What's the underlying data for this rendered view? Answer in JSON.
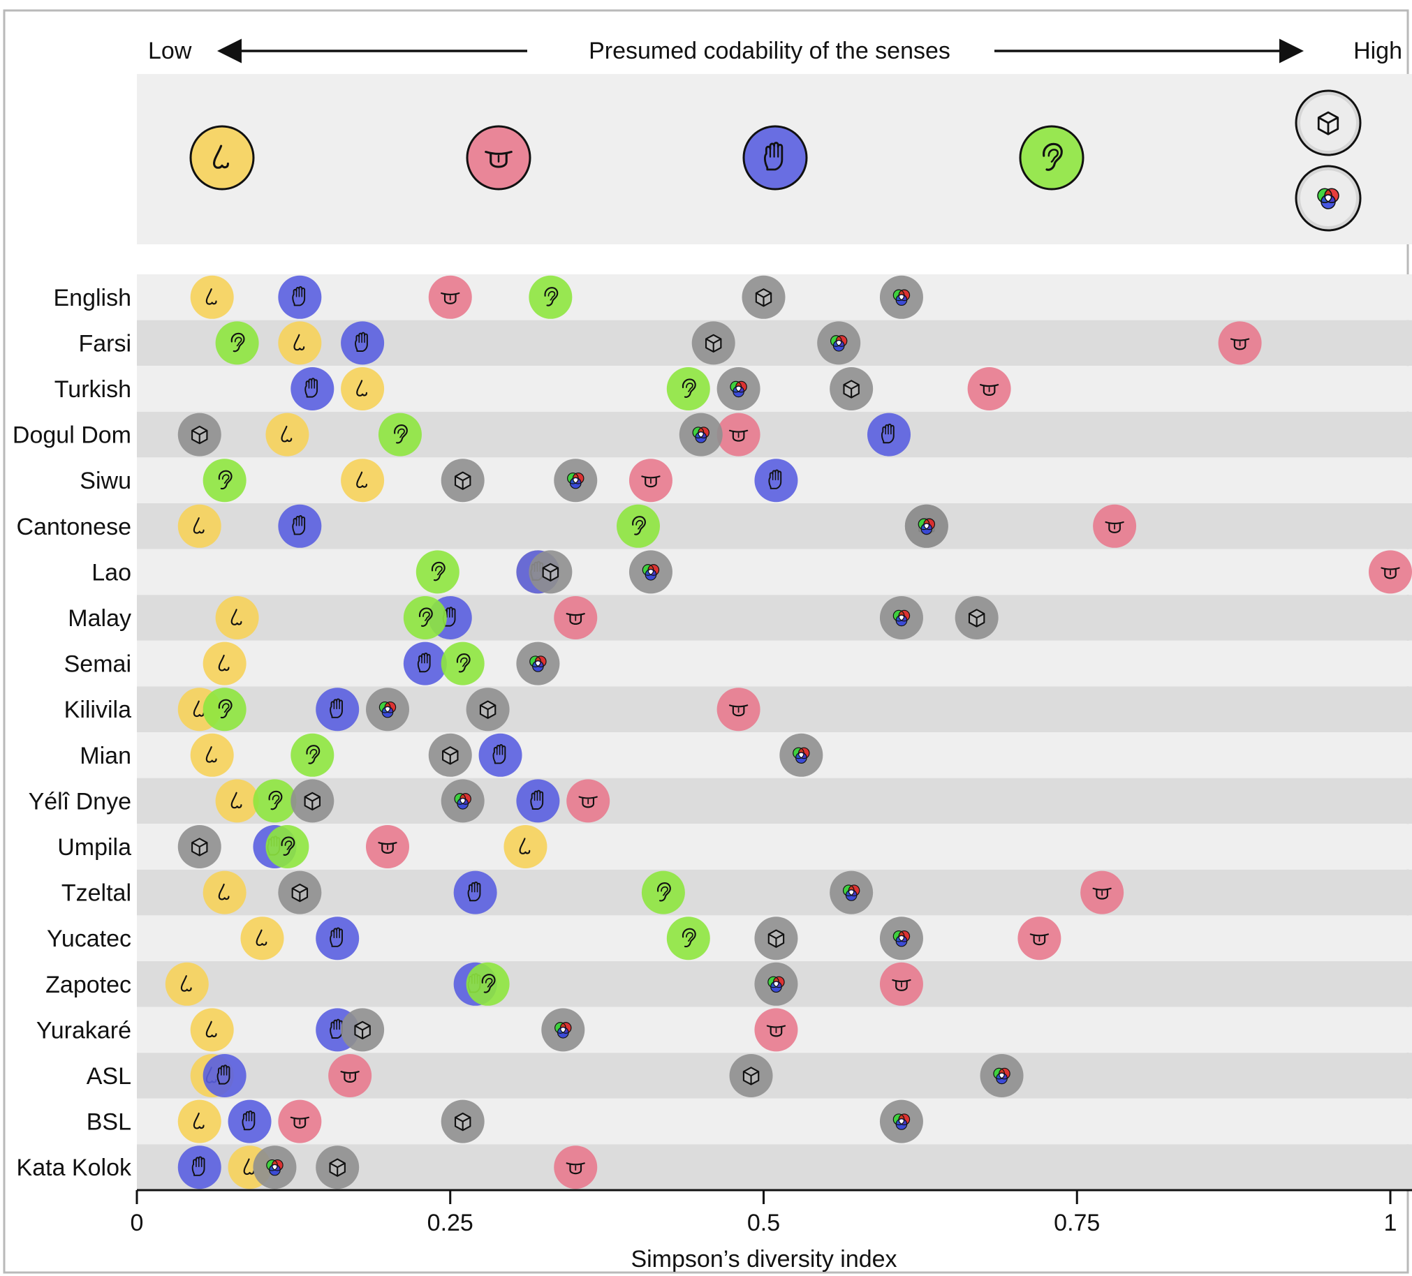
{
  "header": {
    "low_label": "Low",
    "high_label": "High",
    "title": "Presumed codability of the senses"
  },
  "legend": [
    {
      "sense": "smell",
      "icon": "nose-icon",
      "color": "#F6D25A"
    },
    {
      "sense": "taste",
      "icon": "tongue-icon",
      "color": "#E87A8E"
    },
    {
      "sense": "touch",
      "icon": "hand-icon",
      "color": "#5A5FE0"
    },
    {
      "sense": "sound",
      "icon": "ear-icon",
      "color": "#8EE53F"
    },
    {
      "sense": "shape",
      "icon": "cube-icon",
      "color": "#9A9A9A"
    },
    {
      "sense": "color",
      "icon": "color-wheel-icon",
      "color": "#9A9A9A"
    }
  ],
  "chart_data": {
    "type": "scatter",
    "xlabel": "Simpson’s diversity index",
    "xlim": [
      0,
      1
    ],
    "xticks": [
      0,
      0.25,
      0.5,
      0.75,
      1
    ],
    "xtick_labels": [
      "0",
      "0.25",
      "0.5",
      "0.75",
      "1"
    ],
    "series_order": [
      "smell",
      "taste",
      "touch",
      "sound",
      "shape",
      "color"
    ],
    "languages": [
      {
        "name": "English",
        "smell": 0.06,
        "touch": 0.13,
        "taste": 0.25,
        "sound": 0.33,
        "shape": 0.5,
        "color": 0.61
      },
      {
        "name": "Farsi",
        "sound": 0.08,
        "smell": 0.13,
        "touch": 0.18,
        "shape": 0.46,
        "color": 0.56,
        "taste": 0.88
      },
      {
        "name": "Turkish",
        "touch": 0.14,
        "smell": 0.18,
        "sound": 0.44,
        "color": 0.48,
        "shape": 0.57,
        "taste": 0.68
      },
      {
        "name": "Dogul Dom",
        "shape": 0.05,
        "smell": 0.12,
        "sound": 0.21,
        "color": 0.45,
        "taste": 0.48,
        "touch": 0.6
      },
      {
        "name": "Siwu",
        "sound": 0.07,
        "smell": 0.18,
        "shape": 0.26,
        "color": 0.35,
        "taste": 0.41,
        "touch": 0.51
      },
      {
        "name": "Cantonese",
        "smell": 0.05,
        "touch": 0.13,
        "sound": 0.4,
        "color": 0.63,
        "shape": 0.63,
        "taste": 0.78
      },
      {
        "name": "Lao",
        "sound": 0.24,
        "shape": 0.33,
        "touch": 0.32,
        "smell": 0.32,
        "color": 0.41,
        "taste": 1.0
      },
      {
        "name": "Malay",
        "smell": 0.08,
        "touch": 0.25,
        "sound": 0.23,
        "taste": 0.35,
        "color": 0.61,
        "shape": 0.67
      },
      {
        "name": "Semai",
        "smell": 0.07,
        "touch": 0.23,
        "sound": 0.26,
        "color": 0.32
      },
      {
        "name": "Kilivila",
        "smell": 0.05,
        "sound": 0.07,
        "touch": 0.16,
        "color": 0.2,
        "shape": 0.28,
        "taste": 0.48
      },
      {
        "name": "Mian",
        "smell": 0.06,
        "sound": 0.14,
        "shape": 0.25,
        "touch": 0.29,
        "color": 0.53
      },
      {
        "name": "Yélî Dnye",
        "smell": 0.08,
        "shape": 0.14,
        "sound": 0.11,
        "color": 0.26,
        "touch": 0.32,
        "taste": 0.36
      },
      {
        "name": "Umpila",
        "shape": 0.05,
        "touch": 0.11,
        "sound": 0.12,
        "taste": 0.2,
        "smell": 0.31
      },
      {
        "name": "Tzeltal",
        "smell": 0.07,
        "shape": 0.13,
        "touch": 0.27,
        "sound": 0.42,
        "color": 0.57,
        "taste": 0.77
      },
      {
        "name": "Yucatec",
        "smell": 0.1,
        "touch": 0.16,
        "sound": 0.44,
        "shape": 0.51,
        "color": 0.61,
        "taste": 0.72
      },
      {
        "name": "Zapotec",
        "smell": 0.04,
        "touch": 0.27,
        "sound": 0.28,
        "color": 0.51,
        "taste": 0.61
      },
      {
        "name": "Yurakaré",
        "smell": 0.06,
        "shape": 0.18,
        "touch": 0.16,
        "color": 0.34,
        "taste": 0.51
      },
      {
        "name": "ASL",
        "touch": 0.07,
        "smell": 0.06,
        "taste": 0.17,
        "shape": 0.49,
        "color": 0.69
      },
      {
        "name": "BSL",
        "smell": 0.05,
        "touch": 0.09,
        "taste": 0.13,
        "shape": 0.26,
        "color": 0.61
      },
      {
        "name": "Kata Kolok",
        "touch": 0.05,
        "smell": 0.09,
        "shape": 0.16,
        "color": 0.11,
        "taste": 0.35
      }
    ]
  }
}
